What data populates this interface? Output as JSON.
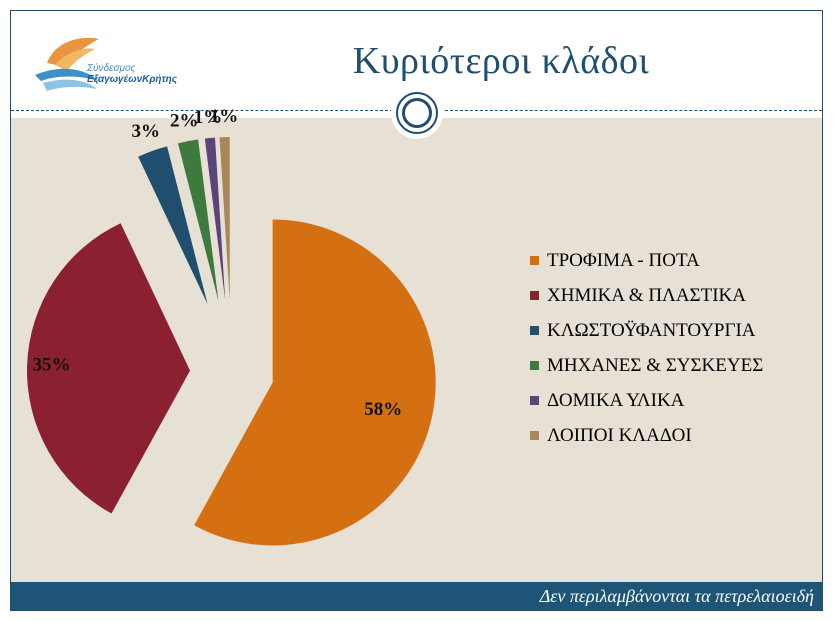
{
  "header": {
    "title": "Κυριότεροι κλάδοι",
    "logo_line1": "Σύνδεσμος",
    "logo_line2": "ΕξαγωγέωνΚρήτης"
  },
  "footer": {
    "note": "Δεν περιλαμβάνονται τα πετρελαιοειδή"
  },
  "chart_data": {
    "type": "pie",
    "title": "",
    "categories": [
      "ΤΡΟΦΙΜΑ - ΠΟΤΑ",
      "ΧΗΜΙΚΑ & ΠΛΑΣΤΙΚΑ",
      "ΚΛΩΣΤΟΫΦΑΝΤΟΥΡΓΙΑ",
      "ΜΗΧΑΝΕΣ & ΣΥΣΚΕΥΕΣ",
      "ΔΟΜΙΚΑ ΥΛΙΚΑ",
      "ΛΟΙΠΟΙ ΚΛΑΔΟΙ"
    ],
    "values": [
      58,
      35,
      3,
      2,
      1,
      1
    ],
    "labels": [
      "58%",
      "35%",
      "3%",
      "2%",
      "1%",
      "1%"
    ],
    "colors": [
      "#d46f12",
      "#8b2130",
      "#1f4e6e",
      "#3e7a3e",
      "#5a4478",
      "#a8875a"
    ],
    "exploded": true,
    "legend_position": "right"
  }
}
